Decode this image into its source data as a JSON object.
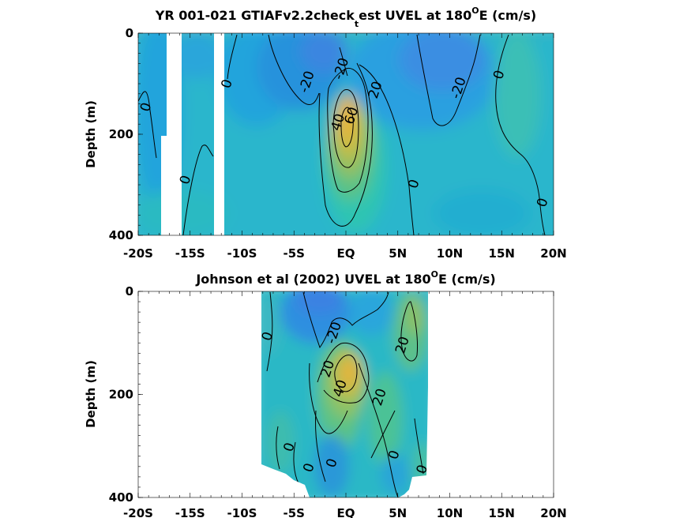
{
  "chart_data": [
    {
      "type": "heatmap",
      "title": "YR 001-021 GTIAFv2.2check",
      "title_sub": "t",
      "title_rest": "est UVEL at 180",
      "title_sup": "O",
      "title_end": "E (cm/s)",
      "ylabel": "Depth (m)",
      "xlim": [
        -20,
        20
      ],
      "ylim": [
        400,
        0
      ],
      "x_ticks": [
        -20,
        -15,
        -10,
        -5,
        0,
        5,
        10,
        15,
        20
      ],
      "x_tick_labels": [
        "-20S",
        "-15S",
        "-10S",
        "-5S",
        "EQ",
        "5N",
        "10N",
        "15N",
        "20N"
      ],
      "y_ticks": [
        0,
        200,
        400
      ],
      "y_tick_labels": [
        "0",
        "200",
        "400"
      ],
      "colormap": [
        "#3d8ee0",
        "#22a8e2",
        "#18bbc5",
        "#4ac29a",
        "#8ec466",
        "#c9be44",
        "#e9b63a"
      ],
      "clim": [
        -30,
        70
      ],
      "contour_levels": [
        -20,
        0,
        20,
        40,
        60
      ],
      "contour_labels": [
        {
          "text": "0",
          "x": -19.3,
          "y": 146
        },
        {
          "text": "0",
          "x": -15.5,
          "y": 290
        },
        {
          "text": "0",
          "x": -11.5,
          "y": 100
        },
        {
          "text": "-20",
          "x": -3.8,
          "y": 96
        },
        {
          "text": "-20",
          "x": -0.5,
          "y": 70
        },
        {
          "text": "20",
          "x": 2.8,
          "y": 112
        },
        {
          "text": "60",
          "x": 0.5,
          "y": 163
        },
        {
          "text": "40",
          "x": -0.8,
          "y": 176
        },
        {
          "text": "0",
          "x": 6.5,
          "y": 298
        },
        {
          "text": "-20",
          "x": 10.8,
          "y": 108
        },
        {
          "text": "0",
          "x": 14.7,
          "y": 82
        },
        {
          "text": "0",
          "x": 18.9,
          "y": 335
        }
      ]
    },
    {
      "type": "heatmap",
      "title": "Johnson et al (2002) UVEL at 180",
      "title_sup": "O",
      "title_end": "E (cm/s)",
      "ylabel": "Depth (m)",
      "xlim": [
        -20,
        20
      ],
      "ylim": [
        400,
        0
      ],
      "x_ticks": [
        -20,
        -15,
        -10,
        -5,
        0,
        5,
        10,
        15,
        20
      ],
      "x_tick_labels": [
        "-20S",
        "-15S",
        "-10S",
        "-5S",
        "EQ",
        "5N",
        "10N",
        "15N",
        "20N"
      ],
      "y_ticks": [
        0,
        200,
        400
      ],
      "y_tick_labels": [
        "0",
        "200",
        "400"
      ],
      "data_extent_x": [
        -8,
        8
      ],
      "contour_levels": [
        -20,
        0,
        20,
        40
      ],
      "contour_labels": [
        {
          "text": "0",
          "x": -7.6,
          "y": 87
        },
        {
          "text": "-20",
          "x": -1.2,
          "y": 80
        },
        {
          "text": "20",
          "x": 5.4,
          "y": 104
        },
        {
          "text": "20",
          "x": -1.8,
          "y": 150
        },
        {
          "text": "40",
          "x": -0.6,
          "y": 188
        },
        {
          "text": "20",
          "x": 3.2,
          "y": 205
        },
        {
          "text": "0",
          "x": -5.5,
          "y": 302
        },
        {
          "text": "0",
          "x": -3.6,
          "y": 342
        },
        {
          "text": "0",
          "x": -1.4,
          "y": 333
        },
        {
          "text": "0",
          "x": 4.6,
          "y": 317
        },
        {
          "text": "0",
          "x": 7.3,
          "y": 345
        }
      ]
    }
  ]
}
